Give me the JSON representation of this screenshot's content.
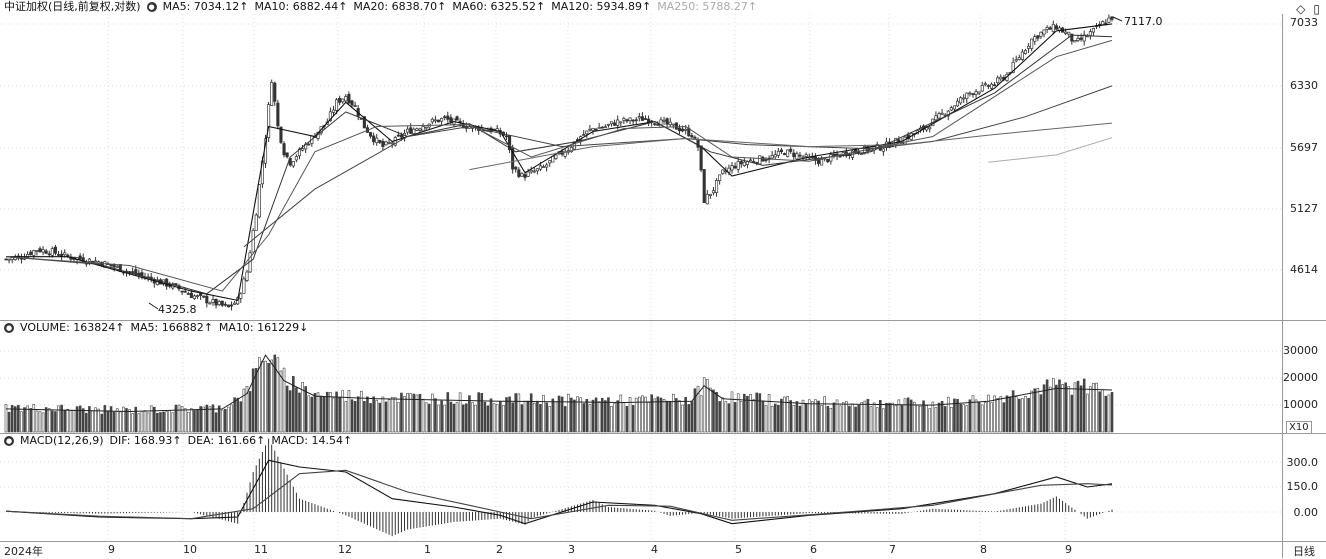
{
  "header": {
    "title": "中证加权(日线,前复权,对数)",
    "ma5": "MA5: 7034.12↑",
    "ma10": "MA10: 6882.44↑",
    "ma20": "MA20: 6838.70↑",
    "ma60": "MA60: 6325.52↑",
    "ma120": "MA120: 5934.89↑",
    "ma250": "MA250: 5788.27↑"
  },
  "volume_header": {
    "title": "VOLUME: 163824↑",
    "ma5": "MA5: 166882↑",
    "ma10": "MA10: 161229↓"
  },
  "macd_header": {
    "title": "MACD(12,26,9)",
    "dif": "DIF: 168.93↑",
    "dea": "DEA: 161.66↑",
    "macd": "MACD: 14.54↑"
  },
  "toolbar": {
    "diamond_icon": "◇",
    "window_icon": "▯"
  },
  "annotations": {
    "high": "7117.0",
    "low": "4325.8"
  },
  "volume_scale_label": "X10",
  "period_label": "日线",
  "chart_data": [
    {
      "type": "candlestick",
      "scale": "log",
      "y_ticks": [
        "7033",
        "6330",
        "5697",
        "5127",
        "4614"
      ],
      "x_labels": [
        "2024年",
        "9",
        "10",
        "11",
        "12",
        "1",
        "2",
        "3",
        "4",
        "5",
        "6",
        "7",
        "8",
        "9"
      ],
      "close_path": [
        [
          0,
          4700
        ],
        [
          5,
          4720
        ],
        [
          10,
          4780
        ],
        [
          15,
          4760
        ],
        [
          20,
          4720
        ],
        [
          25,
          4700
        ],
        [
          30,
          4680
        ],
        [
          35,
          4640
        ],
        [
          40,
          4600
        ],
        [
          45,
          4560
        ],
        [
          50,
          4520
        ],
        [
          55,
          4480
        ],
        [
          60,
          4420
        ],
        [
          65,
          4380
        ],
        [
          70,
          4340
        ],
        [
          72,
          4325.8
        ],
        [
          75,
          4380
        ],
        [
          78,
          4600
        ],
        [
          81,
          5100
        ],
        [
          84,
          5800
        ],
        [
          86,
          6400
        ],
        [
          88,
          5900
        ],
        [
          90,
          5650
        ],
        [
          92,
          5550
        ],
        [
          95,
          5650
        ],
        [
          98,
          5750
        ],
        [
          101,
          5850
        ],
        [
          104,
          5950
        ],
        [
          107,
          6150
        ],
        [
          110,
          6220
        ],
        [
          113,
          6100
        ],
        [
          116,
          5900
        ],
        [
          119,
          5780
        ],
        [
          122,
          5700
        ],
        [
          126,
          5760
        ],
        [
          130,
          5850
        ],
        [
          134,
          5900
        ],
        [
          138,
          5950
        ],
        [
          142,
          5980
        ],
        [
          146,
          5930
        ],
        [
          150,
          5900
        ],
        [
          154,
          5880
        ],
        [
          158,
          5860
        ],
        [
          162,
          5800
        ],
        [
          164,
          5500
        ],
        [
          167,
          5420
        ],
        [
          170,
          5450
        ],
        [
          174,
          5500
        ],
        [
          178,
          5600
        ],
        [
          182,
          5680
        ],
        [
          186,
          5800
        ],
        [
          190,
          5880
        ],
        [
          194,
          5900
        ],
        [
          198,
          5950
        ],
        [
          202,
          5960
        ],
        [
          206,
          5980
        ],
        [
          210,
          5960
        ],
        [
          214,
          5920
        ],
        [
          218,
          5880
        ],
        [
          222,
          5820
        ],
        [
          224,
          5700
        ],
        [
          226,
          5200
        ],
        [
          229,
          5300
        ],
        [
          232,
          5450
        ],
        [
          236,
          5520
        ],
        [
          240,
          5560
        ],
        [
          244,
          5580
        ],
        [
          248,
          5600
        ],
        [
          252,
          5650
        ],
        [
          256,
          5620
        ],
        [
          260,
          5580
        ],
        [
          264,
          5560
        ],
        [
          268,
          5600
        ],
        [
          272,
          5640
        ],
        [
          276,
          5660
        ],
        [
          280,
          5680
        ],
        [
          284,
          5700
        ],
        [
          288,
          5750
        ],
        [
          292,
          5800
        ],
        [
          296,
          5860
        ],
        [
          300,
          5950
        ],
        [
          304,
          6050
        ],
        [
          308,
          6150
        ],
        [
          312,
          6250
        ],
        [
          316,
          6300
        ],
        [
          320,
          6350
        ],
        [
          324,
          6450
        ],
        [
          328,
          6650
        ],
        [
          332,
          6850
        ],
        [
          336,
          6950
        ],
        [
          340,
          7000
        ],
        [
          344,
          6900
        ],
        [
          346,
          6800
        ],
        [
          348,
          6850
        ],
        [
          352,
          6950
        ],
        [
          355,
          7040
        ],
        [
          358,
          7117
        ]
      ],
      "ma_series": [
        {
          "name": "MA5",
          "values": [
            [
              0,
              4720
            ],
            [
              20,
              4720
            ],
            [
              60,
              4450
            ],
            [
              75,
              4380
            ],
            [
              85,
              5900
            ],
            [
              100,
              5800
            ],
            [
              110,
              6150
            ],
            [
              125,
              5750
            ],
            [
              145,
              5950
            ],
            [
              160,
              5850
            ],
            [
              168,
              5450
            ],
            [
              190,
              5850
            ],
            [
              210,
              5950
            ],
            [
              225,
              5700
            ],
            [
              235,
              5420
            ],
            [
              260,
              5600
            ],
            [
              290,
              5750
            ],
            [
              320,
              6300
            ],
            [
              340,
              6950
            ],
            [
              358,
              7034
            ]
          ]
        },
        {
          "name": "MA10",
          "values": [
            [
              0,
              4720
            ],
            [
              30,
              4660
            ],
            [
              65,
              4430
            ],
            [
              80,
              4700
            ],
            [
              92,
              5600
            ],
            [
              110,
              6050
            ],
            [
              130,
              5800
            ],
            [
              150,
              5930
            ],
            [
              165,
              5650
            ],
            [
              185,
              5750
            ],
            [
              210,
              5950
            ],
            [
              228,
              5650
            ],
            [
              245,
              5520
            ],
            [
              280,
              5650
            ],
            [
              320,
              6250
            ],
            [
              345,
              6900
            ],
            [
              358,
              6882
            ]
          ]
        },
        {
          "name": "MA20",
          "values": [
            [
              0,
              4720
            ],
            [
              40,
              4650
            ],
            [
              70,
              4450
            ],
            [
              85,
              4900
            ],
            [
              100,
              5650
            ],
            [
              120,
              5900
            ],
            [
              150,
              5920
            ],
            [
              170,
              5600
            ],
            [
              200,
              5880
            ],
            [
              220,
              5900
            ],
            [
              235,
              5600
            ],
            [
              260,
              5560
            ],
            [
              300,
              5800
            ],
            [
              340,
              6650
            ],
            [
              358,
              6838
            ]
          ]
        },
        {
          "name": "MA60",
          "values": [
            [
              77,
              4800
            ],
            [
              100,
              5300
            ],
            [
              130,
              5800
            ],
            [
              150,
              5900
            ],
            [
              180,
              5700
            ],
            [
              220,
              5780
            ],
            [
              240,
              5720
            ],
            [
              280,
              5680
            ],
            [
              300,
              5750
            ],
            [
              330,
              6000
            ],
            [
              358,
              6325
            ]
          ]
        },
        {
          "name": "MA120",
          "values": [
            [
              150,
              5480
            ],
            [
              190,
              5700
            ],
            [
              220,
              5780
            ],
            [
              260,
              5700
            ],
            [
              290,
              5720
            ],
            [
              320,
              5820
            ],
            [
              358,
              5935
            ]
          ]
        },
        {
          "name": "MA250",
          "values": [
            [
              318,
              5550
            ],
            [
              340,
              5620
            ],
            [
              358,
              5788
            ]
          ]
        }
      ]
    },
    {
      "type": "bar",
      "name": "VOLUME",
      "y_ticks": [
        "30000",
        "20000",
        "10000"
      ],
      "profile": [
        [
          0,
          9000
        ],
        [
          40,
          8000
        ],
        [
          70,
          9000
        ],
        [
          78,
          15000
        ],
        [
          84,
          30000
        ],
        [
          90,
          20000
        ],
        [
          100,
          14000
        ],
        [
          120,
          13000
        ],
        [
          160,
          12000
        ],
        [
          200,
          11500
        ],
        [
          222,
          12000
        ],
        [
          226,
          18000
        ],
        [
          232,
          13000
        ],
        [
          260,
          11000
        ],
        [
          300,
          10500
        ],
        [
          318,
          12000
        ],
        [
          340,
          17000
        ],
        [
          358,
          16382
        ]
      ]
    },
    {
      "type": "bar",
      "name": "MACD",
      "y_ticks": [
        "300.0",
        "150.0",
        "0.00"
      ],
      "dif": [
        [
          0,
          5
        ],
        [
          30,
          -30
        ],
        [
          60,
          -40
        ],
        [
          75,
          -30
        ],
        [
          85,
          310
        ],
        [
          95,
          270
        ],
        [
          110,
          240
        ],
        [
          125,
          80
        ],
        [
          145,
          30
        ],
        [
          160,
          -20
        ],
        [
          168,
          -70
        ],
        [
          190,
          60
        ],
        [
          210,
          40
        ],
        [
          225,
          -10
        ],
        [
          235,
          -70
        ],
        [
          260,
          -20
        ],
        [
          290,
          20
        ],
        [
          320,
          110
        ],
        [
          340,
          210
        ],
        [
          350,
          150
        ],
        [
          358,
          169
        ]
      ],
      "dea": [
        [
          0,
          5
        ],
        [
          30,
          -25
        ],
        [
          60,
          -40
        ],
        [
          80,
          20
        ],
        [
          95,
          230
        ],
        [
          110,
          250
        ],
        [
          130,
          120
        ],
        [
          150,
          40
        ],
        [
          170,
          -40
        ],
        [
          195,
          40
        ],
        [
          215,
          35
        ],
        [
          235,
          -50
        ],
        [
          265,
          -10
        ],
        [
          300,
          40
        ],
        [
          335,
          160
        ],
        [
          350,
          170
        ],
        [
          358,
          162
        ]
      ]
    }
  ]
}
